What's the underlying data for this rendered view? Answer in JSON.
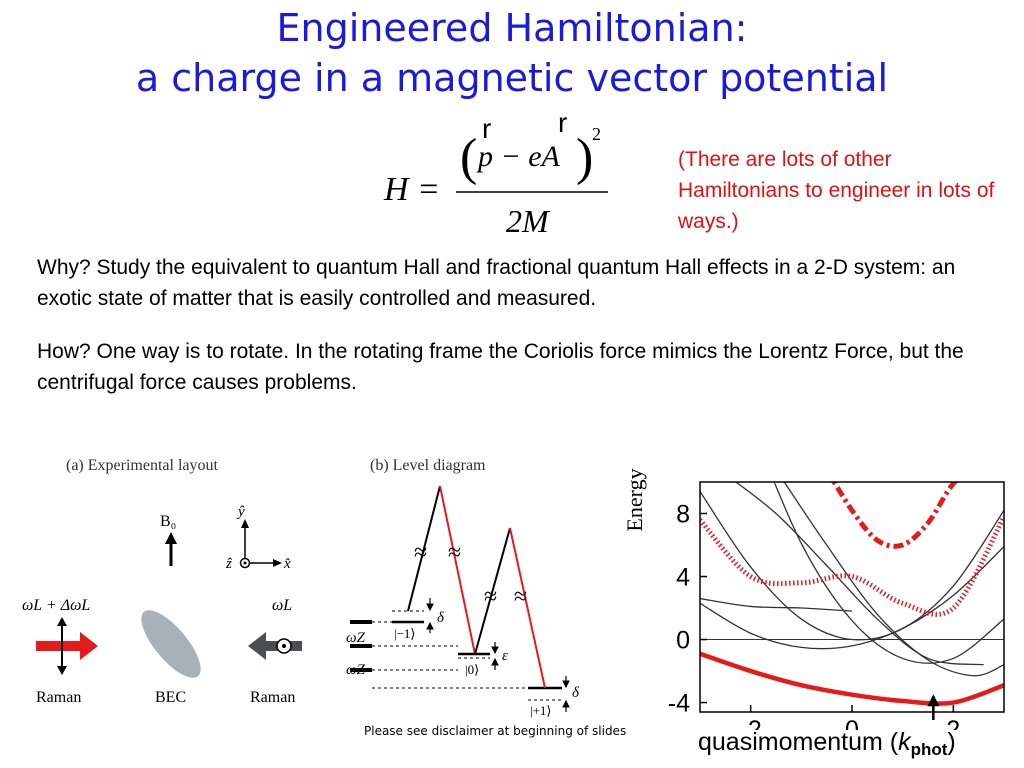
{
  "slide": {
    "title_line1": "Engineered Hamiltonian:",
    "title_line2": "a charge in a magnetic vector potential",
    "note": "(There are lots of other Hamiltonians to engineer in lots of ways.)",
    "why": "Why?   Study the equivalent to quantum Hall and fractional quantum Hall effects in a 2-D system:  an exotic state of matter that is easily controlled and measured.",
    "how": "How?  One way is to rotate.  In the rotating frame the Coriolis force mimics the Lorentz Force, but the centrifugal force causes problems.",
    "disclaimer": "Please see disclaimer at beginning of slides"
  },
  "equation": {
    "lhs": "H =",
    "numerator": "p − eA",
    "exponent": "2",
    "denominator": "2M",
    "vector_marks": [
      "r",
      "r"
    ]
  },
  "figure_a": {
    "caption": "(a) Experimental layout",
    "b_label": "B₀",
    "y_label": "ŷ",
    "x_label": "x̂",
    "z_label": "ẑ",
    "left_freq": "ωL + ΔωL",
    "right_freq": "ωL",
    "left_label": "Raman",
    "center_label": "BEC",
    "right_label": "Raman",
    "colors": {
      "left_arrow": "#e51b1b",
      "right_arrow": "#4a4f55",
      "bec": "#a9b1b8"
    }
  },
  "figure_b": {
    "caption": "(b) Level diagram",
    "levels": [
      "|−1⟩",
      "|0⟩",
      "|+1⟩"
    ],
    "omega_z": "ωZ",
    "delta": "δ",
    "epsilon": "ε",
    "break_mark": "≈"
  },
  "chart_data": {
    "type": "line",
    "ylabel": "Energy",
    "xlabel": "quasimomentum (kphot)",
    "xlim": [
      -3,
      3
    ],
    "ylim": [
      -4.6,
      10
    ],
    "x_ticks": [
      -2,
      0,
      2
    ],
    "y_ticks": [
      8,
      4,
      0,
      -4
    ],
    "grid": "horizontal line at 0",
    "annotation": "arrow at x = 2 pointing to the band minimum",
    "colors": {
      "bare_bands": "#333333",
      "dressed_bands": "#e51b1b"
    },
    "series": [
      {
        "style": "thin-gray",
        "x": [
          -3,
          -2,
          -1,
          0,
          1,
          2,
          3
        ],
        "y": [
          2.3,
          0.4,
          -0.5,
          -0.4,
          0.7,
          2.8,
          5.9
        ]
      },
      {
        "style": "thin-gray",
        "x": [
          -3,
          -2,
          -1,
          0,
          1,
          2,
          3
        ],
        "y": [
          9.4,
          4.6,
          1.3,
          0.0,
          0.7,
          3.4,
          8.2
        ]
      },
      {
        "style": "thin-gray",
        "x": [
          -2,
          -1,
          0,
          1,
          2,
          3
        ],
        "y": [
          13.7,
          6.1,
          1.2,
          -1.2,
          -1.2,
          1.3
        ]
      },
      {
        "style": "thin-gray",
        "x": [
          -3,
          -2,
          -1,
          0
        ],
        "y": [
          2.6,
          2.1,
          2.0,
          1.8
        ]
      },
      {
        "style": "thin-gray",
        "x": [
          -1.4,
          -0.5,
          0.5,
          1.5,
          2.4,
          3.0
        ],
        "y": [
          10.3,
          6.0,
          1.6,
          -1.3,
          -2.3,
          -1.6
        ]
      },
      {
        "style": "thin-gray",
        "x": [
          -2.5,
          -1.5,
          -0.5,
          0.5,
          1.5,
          2.6
        ],
        "y": [
          10.5,
          8.0,
          4.7,
          1.3,
          -1.2,
          -1.6
        ]
      },
      {
        "style": "thick-solid",
        "x": [
          -3,
          -2,
          -1,
          0,
          1,
          2,
          3
        ],
        "y": [
          -0.9,
          -2.0,
          -2.9,
          -3.5,
          -3.9,
          -4.0,
          -2.9
        ]
      },
      {
        "style": "thick-dotted",
        "x": [
          -3,
          -2,
          -1,
          0,
          1,
          2,
          3
        ],
        "y": [
          7.6,
          4.0,
          3.6,
          4.0,
          2.3,
          2.0,
          7.8
        ]
      },
      {
        "style": "thick-dashdot",
        "x": [
          -0.5,
          0,
          0.5,
          1,
          1.5,
          2,
          2.5
        ],
        "y": [
          10.8,
          8.2,
          6.3,
          6.0,
          7.4,
          9.9,
          11.1
        ]
      }
    ]
  }
}
